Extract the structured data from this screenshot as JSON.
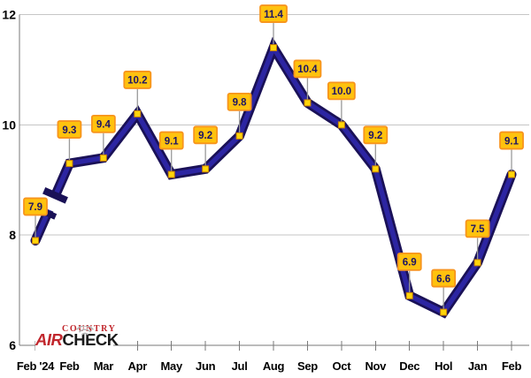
{
  "chart_data": {
    "type": "line",
    "categories": [
      "Feb '24",
      "Feb",
      "Mar",
      "Apr",
      "May",
      "Jun",
      "Jul",
      "Aug",
      "Sep",
      "Oct",
      "Nov",
      "Dec",
      "Hol",
      "Jan",
      "Feb"
    ],
    "values": [
      7.9,
      9.3,
      9.4,
      10.2,
      9.1,
      9.2,
      9.8,
      11.4,
      10.4,
      10.0,
      9.2,
      6.9,
      6.6,
      7.5,
      9.1
    ],
    "value_labels": [
      "7.9",
      "9.3",
      "9.4",
      "10.2",
      "9.1",
      "9.2",
      "9.8",
      "11.4",
      "10.4",
      "10.0",
      "9.2",
      "6.9",
      "6.6",
      "7.5",
      "9.1"
    ],
    "title": "",
    "xlabel": "",
    "ylabel": "",
    "ylim": [
      6,
      12
    ],
    "yticks": [
      6,
      8,
      10,
      12
    ],
    "grid": true,
    "legend_position": "none",
    "axis_break_after_index": 0
  },
  "style": {
    "line_outer": "#1a1157",
    "line_inner": "#2c25a2",
    "marker_fill": "#ffd60a",
    "marker_stroke": "#c77f06",
    "label_fill": "#ffc20e",
    "label_border": "#f7941d",
    "label_text": "#1b1464",
    "grid_color": "#c6c6c6",
    "axis_color": "#7a7a7a",
    "stem_color": "#9a9a9a"
  },
  "logo": {
    "line1": "COUNTRY",
    "line2_part1": "AIR",
    "line2_part2": "CHECK",
    "red": "#c1272d",
    "black": "#1a1a1a",
    "arc_color": "#b5b5b5"
  }
}
